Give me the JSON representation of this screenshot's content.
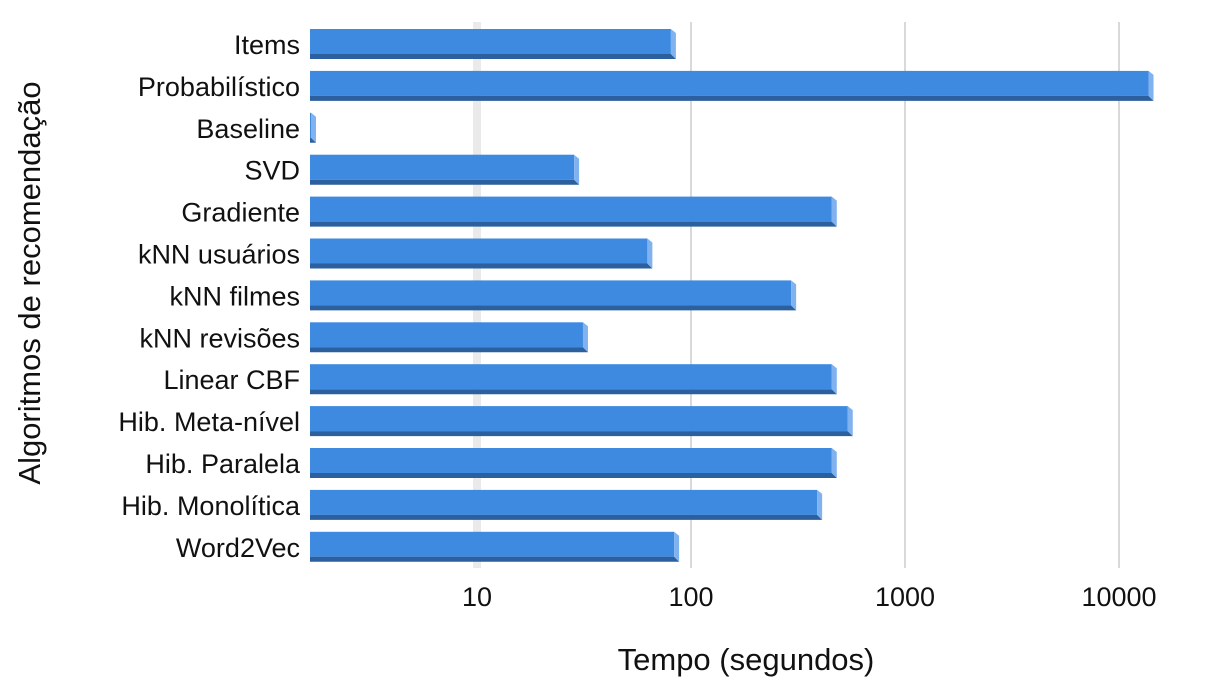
{
  "chart_data": {
    "type": "bar",
    "orientation": "horizontal",
    "xlabel": "Tempo (segundos)",
    "ylabel": "Algoritmos de recomendação",
    "x_scale": "log",
    "x_ticks": [
      "10",
      "100",
      "1000",
      "10000"
    ],
    "categories": [
      "Items",
      "Probabilístico",
      "Baseline",
      "SVD",
      "Gradiente",
      "kNN usuários",
      "kNN filmes",
      "kNN revisões",
      "Linear CBF",
      "Hib. Meta-nível",
      "Hib. Paralela",
      "Hib. Monolítica",
      "Word2Vec"
    ],
    "values": [
      85,
      14500,
      1.7,
      30,
      480,
      66,
      310,
      33,
      480,
      570,
      480,
      410,
      88
    ],
    "grid": true,
    "legend": "none",
    "colors": {
      "bar_face": "#3d8ae0",
      "bar_shadow": "#2b5f9e",
      "bar_edge": "#7fb2ee",
      "grid": "#d9d9d9"
    }
  }
}
